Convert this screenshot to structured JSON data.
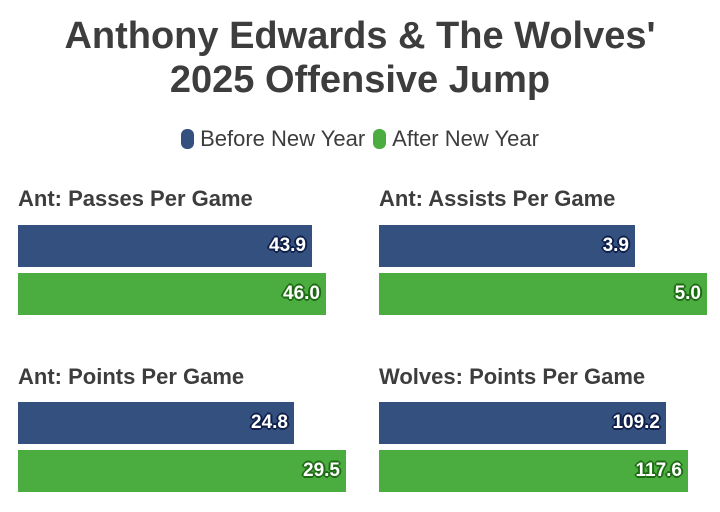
{
  "chart_data": {
    "type": "bar",
    "title_lines": [
      "Anthony Edwards & The Wolves'",
      "2025 Offensive Jump"
    ],
    "legend": [
      {
        "name": "Before New Year",
        "color": "#33507f"
      },
      {
        "name": "After New Year",
        "color": "#4bad3f"
      }
    ],
    "legend_placement": "top-center",
    "grid": false,
    "panels": [
      {
        "title": "Ant: Passes Per Game",
        "values": [
          43.9,
          46.0
        ],
        "labels": [
          "43.9",
          "46.0"
        ],
        "xlim": [
          0,
          49.0
        ]
      },
      {
        "title": "Ant: Assists Per Game",
        "values": [
          3.9,
          5.0
        ],
        "labels": [
          "3.9",
          "5.0"
        ],
        "xlim": [
          0,
          5.0
        ]
      },
      {
        "title": "Ant: Points Per Game",
        "values": [
          24.8,
          29.5
        ],
        "labels": [
          "24.8",
          "29.5"
        ],
        "xlim": [
          0,
          29.5
        ]
      },
      {
        "title": "Wolves: Points Per Game",
        "values": [
          109.2,
          117.6
        ],
        "labels": [
          "109.2",
          "117.6"
        ],
        "xlim": [
          0,
          125.0
        ]
      }
    ]
  }
}
